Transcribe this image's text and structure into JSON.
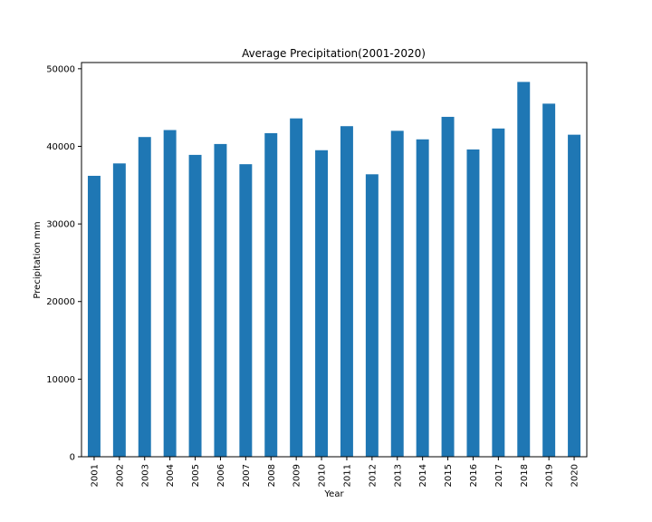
{
  "chart_data": {
    "type": "bar",
    "title": "Average Precipitation(2001-2020)",
    "xlabel": "Year",
    "ylabel": "Precipitation mm",
    "categories": [
      "2001",
      "2002",
      "2003",
      "2004",
      "2005",
      "2006",
      "2007",
      "2008",
      "2009",
      "2010",
      "2011",
      "2012",
      "2013",
      "2014",
      "2015",
      "2016",
      "2017",
      "2018",
      "2019",
      "2020"
    ],
    "values": [
      36200,
      37800,
      41200,
      42100,
      38900,
      40300,
      37700,
      41700,
      43600,
      39500,
      42600,
      36400,
      42000,
      40900,
      43800,
      39600,
      42300,
      48300,
      45500,
      41500
    ],
    "ylim": [
      0,
      50800
    ],
    "yticks": [
      0,
      10000,
      20000,
      30000,
      40000,
      50000
    ],
    "bar_color": "#1f77b4",
    "grid": false,
    "legend": "none"
  }
}
